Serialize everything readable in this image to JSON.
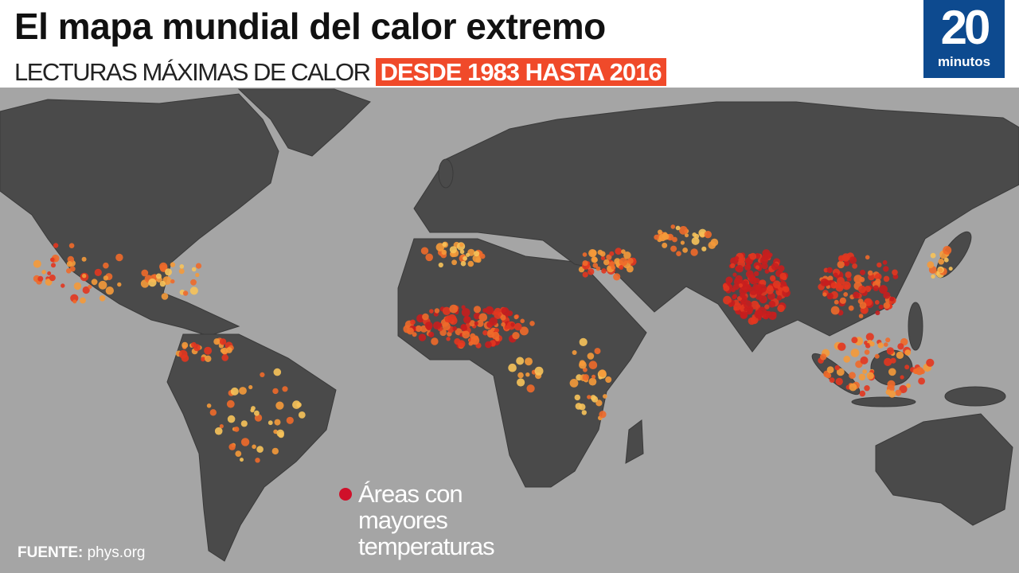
{
  "header": {
    "title": "El mapa mundial del calor extremo",
    "subtitle": "LECTURAS MÁXIMAS DE CALOR",
    "subtitle_highlight": "DESDE 1983 HASTA 2016"
  },
  "logo": {
    "number": "20",
    "word": "minutos"
  },
  "legend": {
    "lines": [
      "Áreas con",
      "mayores",
      "temperaturas"
    ]
  },
  "source": {
    "label": "FUENTE:",
    "value": "phys.org"
  }
}
